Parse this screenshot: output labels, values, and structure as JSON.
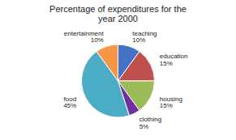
{
  "chart_data": {
    "type": "pie",
    "title": "Percentage of expenditures for the\nyear 2000",
    "categories": [
      "teaching\n10%",
      "education\n15%",
      "housing\n15%",
      "clothing\n5%",
      "food\n45%",
      "entertainment\n10%"
    ],
    "values": [
      10,
      15,
      15,
      5,
      45,
      10
    ],
    "colors": [
      "#4472C4",
      "#C0504D",
      "#9BBB59",
      "#7030A0",
      "#4BACC6",
      "#F79646"
    ]
  }
}
